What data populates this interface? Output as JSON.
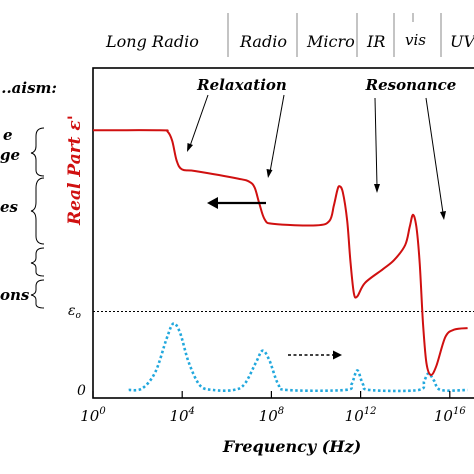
{
  "bands": [
    {
      "label": "Long Radio"
    },
    {
      "label": "Radio"
    },
    {
      "label": "Micro"
    },
    {
      "label": "IR"
    },
    {
      "label": "vis"
    },
    {
      "label": "UV"
    }
  ],
  "mechanism_heading": "...aism:",
  "mechanisms": [
    {
      "line1": "e",
      "line2": "ge"
    },
    {
      "line1": "es",
      "line2": ""
    },
    {
      "line1": "ons",
      "line2": ""
    }
  ],
  "annotations": {
    "relaxation": "Relaxation",
    "resonance": "Resonance"
  },
  "colors": {
    "real_part": "#d01010",
    "imaginary_part": "#22a8dd",
    "axis": "#000000"
  },
  "chart_data": {
    "type": "line",
    "title": "",
    "xlabel": "Frequency (Hz)",
    "ylabel": "Real Part ε'",
    "x_scale": "log",
    "xlim_exponent": [
      0,
      16.8
    ],
    "x_ticks": [
      {
        "base": "10",
        "exp": "0"
      },
      {
        "base": "10",
        "exp": "4"
      },
      {
        "base": "10",
        "exp": "8"
      },
      {
        "base": "10",
        "exp": "12"
      },
      {
        "base": "10",
        "exp": "16"
      }
    ],
    "y_ticks": [
      {
        "label": "εo",
        "main": "ε",
        "sub": "o"
      },
      {
        "label": "0",
        "main": "0",
        "sub": ""
      }
    ],
    "ylim": [
      0,
      10
    ],
    "reference_line": {
      "name": "εo",
      "y": 2.6
    },
    "series": [
      {
        "style": "solid",
        "points": [
          [
            0,
            8.6
          ],
          [
            3.0,
            8.6
          ],
          [
            3.35,
            8.55
          ],
          [
            3.55,
            8.25
          ],
          [
            3.75,
            7.6
          ],
          [
            4.0,
            7.3
          ],
          [
            4.6,
            7.25
          ],
          [
            6.5,
            7.0
          ],
          [
            7.0,
            6.9
          ],
          [
            7.25,
            6.7
          ],
          [
            7.45,
            6.2
          ],
          [
            7.7,
            5.65
          ],
          [
            8.1,
            5.5
          ],
          [
            10.0,
            5.45
          ],
          [
            10.6,
            5.6
          ],
          [
            10.8,
            6.1
          ],
          [
            10.95,
            6.6
          ],
          [
            11.05,
            6.75
          ],
          [
            11.2,
            6.55
          ],
          [
            11.4,
            5.6
          ],
          [
            11.55,
            4.2
          ],
          [
            11.7,
            3.2
          ],
          [
            11.85,
            3.1
          ],
          [
            12.2,
            3.55
          ],
          [
            13.0,
            4.0
          ],
          [
            13.5,
            4.3
          ],
          [
            14.0,
            4.8
          ],
          [
            14.2,
            5.4
          ],
          [
            14.35,
            5.8
          ],
          [
            14.5,
            5.4
          ],
          [
            14.65,
            4.2
          ],
          [
            14.8,
            2.2
          ],
          [
            14.95,
            0.9
          ],
          [
            15.15,
            0.5
          ],
          [
            15.4,
            0.8
          ],
          [
            15.8,
            1.75
          ],
          [
            16.2,
            2.0
          ],
          [
            16.8,
            2.05
          ]
        ]
      },
      {
        "style": "dotted",
        "points": [
          [
            1.6,
            0
          ],
          [
            2.2,
            0.05
          ],
          [
            2.8,
            0.6
          ],
          [
            3.3,
            1.7
          ],
          [
            3.6,
            2.2
          ],
          [
            3.9,
            1.9
          ],
          [
            4.3,
            0.9
          ],
          [
            4.8,
            0.15
          ],
          [
            5.4,
            0
          ],
          [
            6.3,
            0
          ],
          [
            6.8,
            0.2
          ],
          [
            7.3,
            0.9
          ],
          [
            7.6,
            1.3
          ],
          [
            7.9,
            1.0
          ],
          [
            8.3,
            0.2
          ],
          [
            8.7,
            0
          ],
          [
            11.3,
            0
          ],
          [
            11.6,
            0.2
          ],
          [
            11.85,
            0.65
          ],
          [
            12.1,
            0.2
          ],
          [
            12.4,
            0
          ],
          [
            14.6,
            0
          ],
          [
            14.85,
            0.3
          ],
          [
            15.05,
            0.55
          ],
          [
            15.3,
            0.3
          ],
          [
            15.6,
            0
          ],
          [
            16.8,
            0
          ]
        ]
      }
    ]
  }
}
